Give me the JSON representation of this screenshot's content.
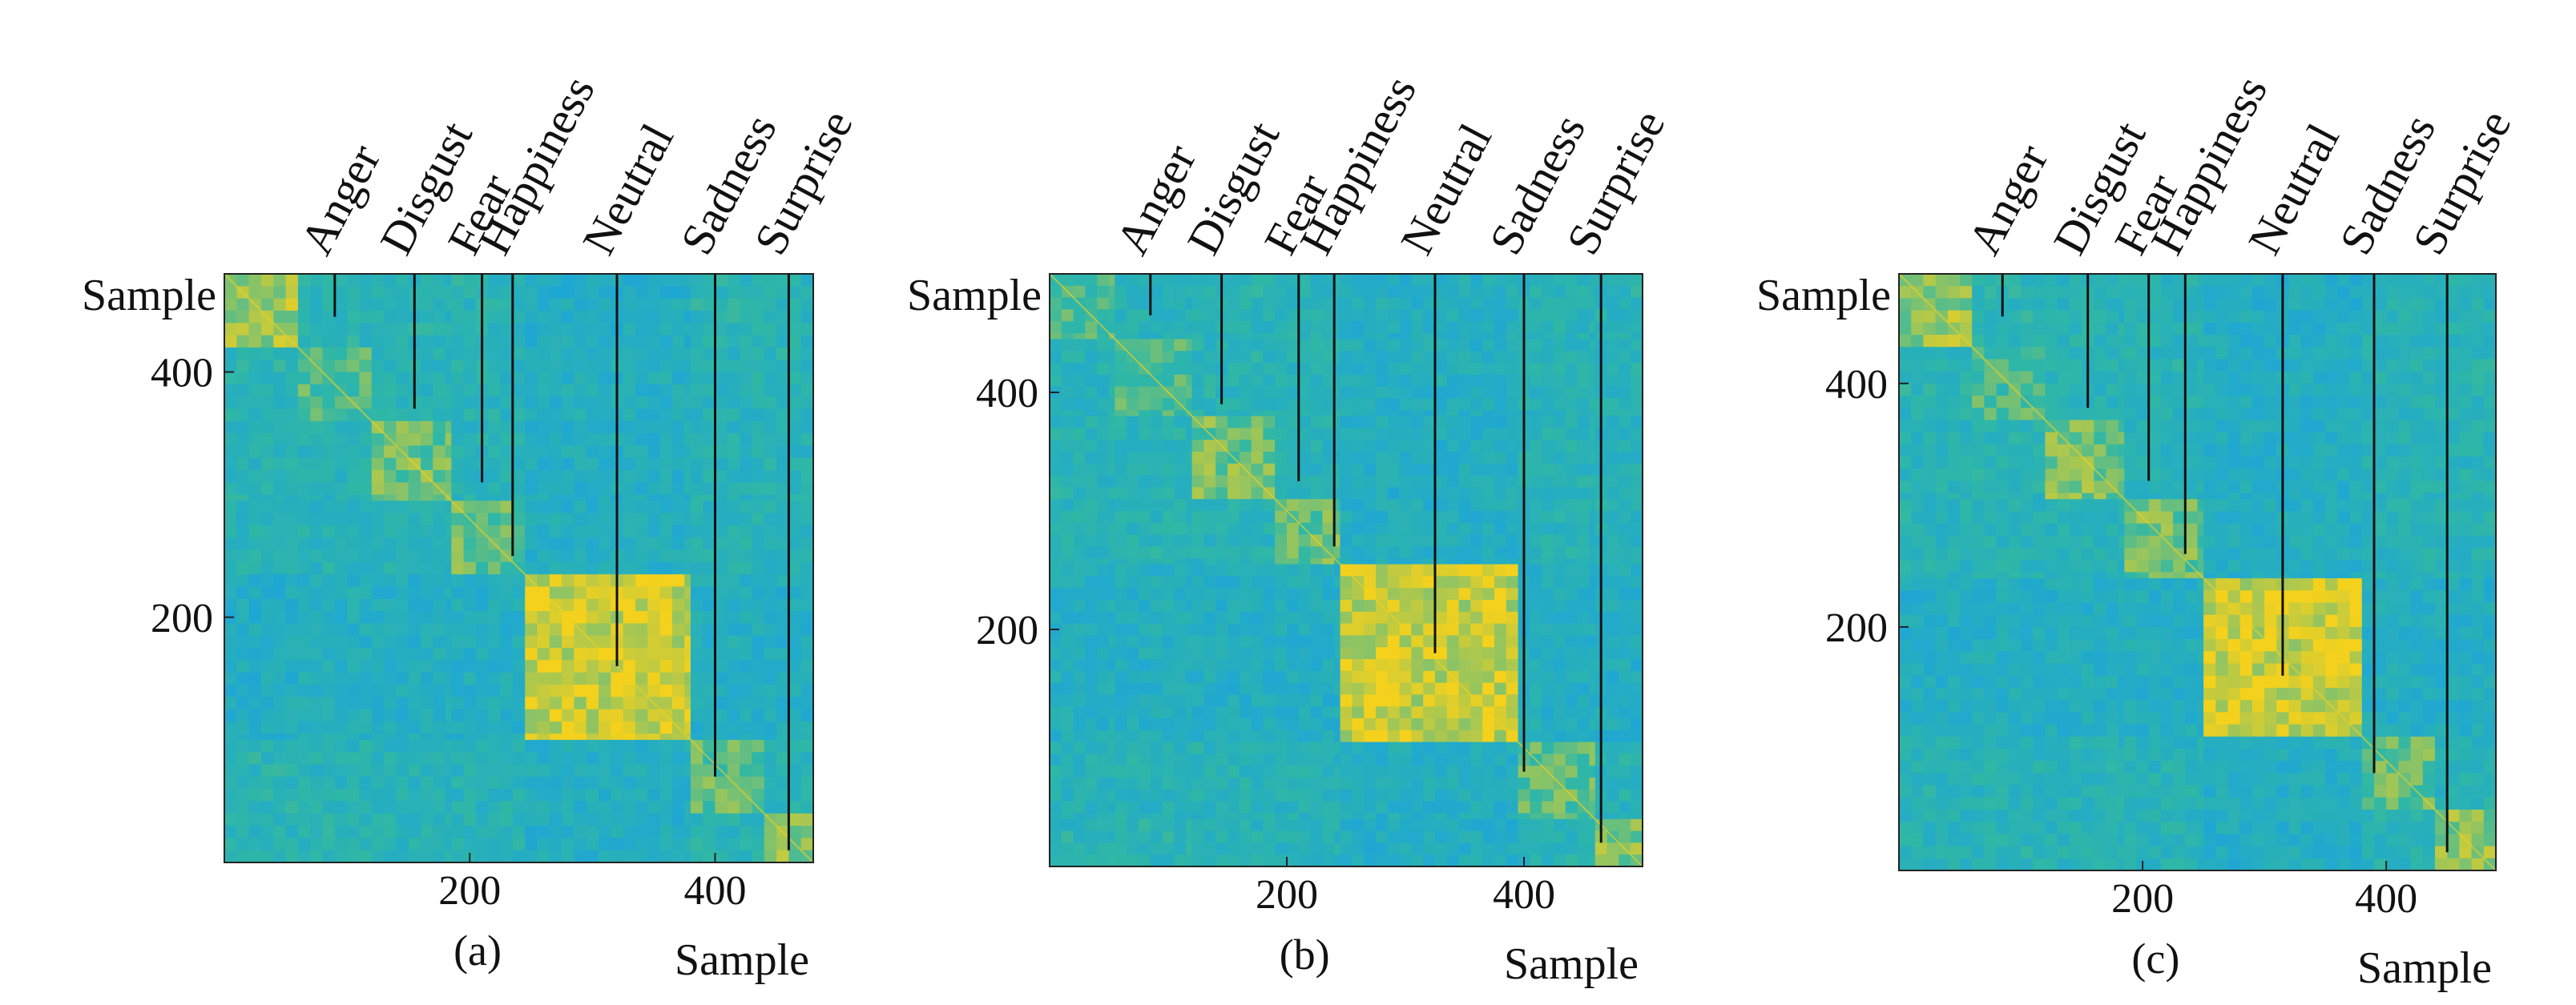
{
  "figure": {
    "background": "#ffffff"
  },
  "colors": {
    "low": "#1ea6d6",
    "mid": "#2fb7a6",
    "high": "#f4d11c",
    "line": "#111111"
  },
  "chart_data": [
    {
      "type": "heatmap",
      "panel_label": "(a)",
      "title": "",
      "xlabel": "Sample",
      "ylabel": "Sample",
      "xlim": [
        0,
        480
      ],
      "ylim": [
        0,
        480
      ],
      "x_ticks": [
        {
          "value": 200,
          "label": "200"
        },
        {
          "value": 400,
          "label": "400"
        }
      ],
      "y_ticks": [
        {
          "value": 200,
          "label": "200"
        },
        {
          "value": 400,
          "label": "400"
        }
      ],
      "classes": [
        "Anger",
        "Disgust",
        "Fear",
        "Happiness",
        "Neutral",
        "Sadness",
        "Surprise"
      ],
      "class_bounds": [
        0,
        60,
        120,
        185,
        245,
        380,
        440,
        480
      ],
      "class_marker_sample": [
        90,
        155,
        210,
        235,
        320,
        400,
        460
      ],
      "class_marker_depth": [
        35,
        110,
        170,
        230,
        320,
        410,
        470
      ],
      "class_similarity": [
        0.78,
        0.55,
        0.65,
        0.62,
        0.9,
        0.6,
        0.7
      ]
    },
    {
      "type": "heatmap",
      "panel_label": "(b)",
      "title": "",
      "xlabel": "Sample",
      "ylabel": "Sample",
      "xlim": [
        0,
        500
      ],
      "ylim": [
        0,
        500
      ],
      "x_ticks": [
        {
          "value": 200,
          "label": "200"
        },
        {
          "value": 400,
          "label": "400"
        }
      ],
      "y_ticks": [
        {
          "value": 200,
          "label": "200"
        },
        {
          "value": 400,
          "label": "400"
        }
      ],
      "classes": [
        "Anger",
        "Disgust",
        "Fear",
        "Happiness",
        "Neutral",
        "Sadness",
        "Surprise"
      ],
      "class_bounds": [
        0,
        55,
        120,
        190,
        245,
        395,
        460,
        500
      ],
      "class_marker_sample": [
        85,
        145,
        210,
        240,
        325,
        400,
        465
      ],
      "class_marker_depth": [
        35,
        110,
        175,
        230,
        320,
        420,
        480
      ],
      "class_similarity": [
        0.55,
        0.55,
        0.68,
        0.65,
        0.88,
        0.6,
        0.7
      ]
    },
    {
      "type": "heatmap",
      "panel_label": "(c)",
      "title": "",
      "xlabel": "Sample",
      "ylabel": "Sample",
      "xlim": [
        0,
        490
      ],
      "ylim": [
        0,
        490
      ],
      "x_ticks": [
        {
          "value": 200,
          "label": "200"
        },
        {
          "value": 400,
          "label": "400"
        }
      ],
      "y_ticks": [
        {
          "value": 200,
          "label": "200"
        },
        {
          "value": 400,
          "label": "400"
        }
      ],
      "classes": [
        "Anger",
        "Disgust",
        "Fear",
        "Happiness",
        "Neutral",
        "Sadness",
        "Surprise"
      ],
      "class_bounds": [
        0,
        60,
        120,
        185,
        250,
        380,
        440,
        490
      ],
      "class_marker_sample": [
        85,
        155,
        205,
        235,
        315,
        390,
        450
      ],
      "class_marker_depth": [
        35,
        110,
        170,
        230,
        330,
        410,
        475
      ],
      "class_similarity": [
        0.75,
        0.55,
        0.68,
        0.65,
        0.9,
        0.62,
        0.72
      ]
    }
  ]
}
